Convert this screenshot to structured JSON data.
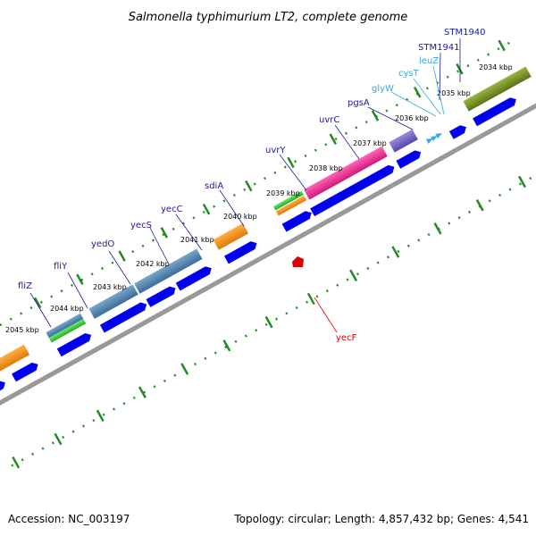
{
  "title": "Salmonella typhimurium LT2, complete genome",
  "footer": {
    "accession": "Accession: NC_003197",
    "topology": "Topology: circular; Length: 4,857,432 bp; Genes: 4,541"
  },
  "colors": {
    "backbone": "#999999",
    "tick": "#228b22",
    "cds": "#0000ee",
    "label_default": "#1a1a9e",
    "label_rna": "#33aadd",
    "label_reverse": "#dd0000"
  },
  "kbp_labels": [
    "2034 kbp",
    "2035 kbp",
    "2036 kbp",
    "2037 kbp",
    "2038 kbp",
    "2039 kbp",
    "2040 kbp",
    "2041 kbp",
    "2042 kbp",
    "2043 kbp",
    "2044 kbp",
    "2045 kbp"
  ],
  "gene_labels": [
    {
      "name": "STM1940",
      "kind": "default"
    },
    {
      "name": "STM1941",
      "kind": "default"
    },
    {
      "name": "leuZ",
      "kind": "rna"
    },
    {
      "name": "cysT",
      "kind": "rna"
    },
    {
      "name": "glyW",
      "kind": "rna"
    },
    {
      "name": "pgsA",
      "kind": "default"
    },
    {
      "name": "uvrC",
      "kind": "default"
    },
    {
      "name": "uvrY",
      "kind": "default"
    },
    {
      "name": "sdiA",
      "kind": "default"
    },
    {
      "name": "yecC",
      "kind": "default"
    },
    {
      "name": "yecS",
      "kind": "default"
    },
    {
      "name": "yedO",
      "kind": "default"
    },
    {
      "name": "fliY",
      "kind": "default"
    },
    {
      "name": "fliZ",
      "kind": "default"
    },
    {
      "name": "yecF",
      "kind": "reverse"
    }
  ]
}
